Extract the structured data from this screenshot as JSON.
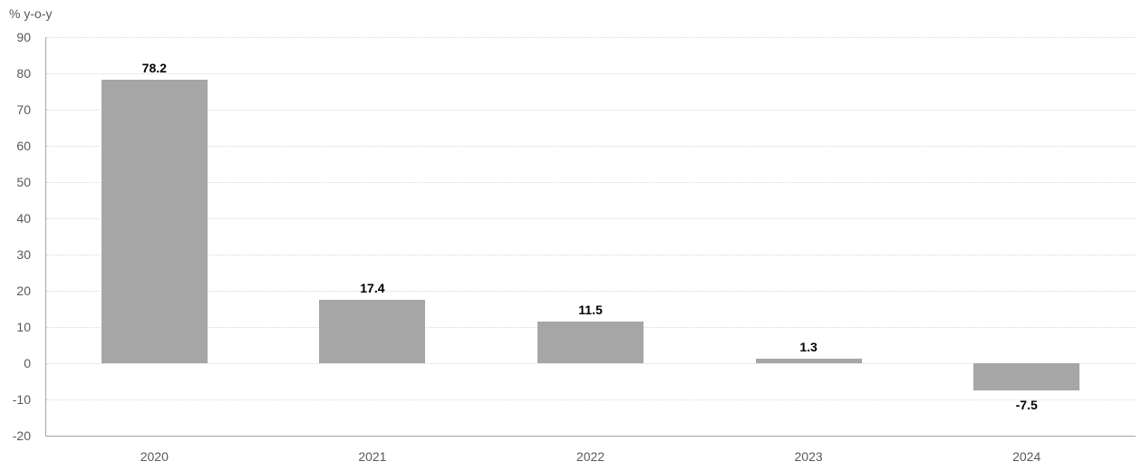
{
  "chart_data": {
    "type": "bar",
    "title": "",
    "xlabel": "",
    "ylabel": "% y-o-y",
    "categories": [
      "2020",
      "2021",
      "2022",
      "2023",
      "2024"
    ],
    "values": [
      78.2,
      17.4,
      11.5,
      1.3,
      -7.5
    ],
    "value_labels": [
      "78.2",
      "17.4",
      "11.5",
      "1.3",
      "-7.5"
    ],
    "ylim": [
      -20,
      90
    ],
    "ytick_step": 10,
    "yticks": [
      90,
      80,
      70,
      60,
      50,
      40,
      30,
      20,
      10,
      0,
      -10,
      -20
    ],
    "grid": "horizontal-dotted",
    "legend": "none",
    "bar_color": "#a6a6a6",
    "axis_line_color": "#a6a6a6",
    "gridline_color": "#d9d9d9",
    "tick_label_color": "#595959",
    "value_label_color": "#000000"
  }
}
